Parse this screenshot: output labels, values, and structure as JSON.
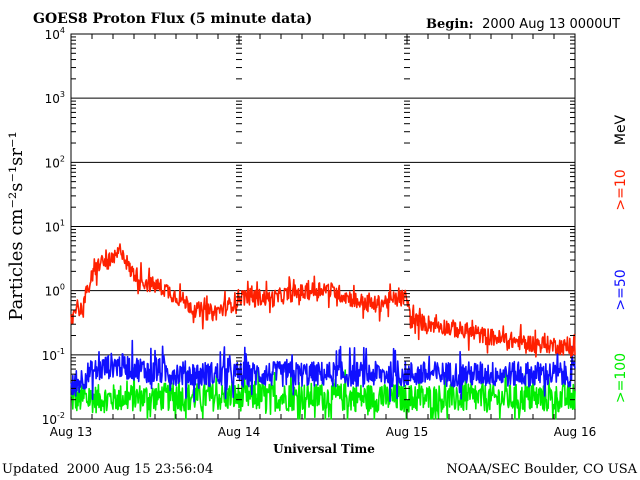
{
  "chart_data": {
    "type": "line",
    "title": "GOES8 Proton Flux (5 minute data)",
    "begin_label": "Begin:",
    "begin_value": "2000 Aug 13 0000UT",
    "xlabel": "Universal Time",
    "ylabel": "Particles cm⁻²s⁻¹sr⁻¹",
    "y_scale": "log",
    "ylim": [
      0.01,
      10000
    ],
    "y_ticks": [
      {
        "value": 0.01,
        "exp": "-2"
      },
      {
        "value": 0.1,
        "exp": "-1"
      },
      {
        "value": 1,
        "exp": "0"
      },
      {
        "value": 10,
        "exp": "1"
      },
      {
        "value": 100,
        "exp": "2"
      },
      {
        "value": 1000,
        "exp": "3"
      },
      {
        "value": 10000,
        "exp": "4"
      }
    ],
    "y_tick_base": "10",
    "x_range_days": [
      0,
      3
    ],
    "x_ticks": [
      {
        "value": 0,
        "label": "Aug 13"
      },
      {
        "value": 1,
        "label": "Aug 14"
      },
      {
        "value": 2,
        "label": "Aug 15"
      },
      {
        "value": 3,
        "label": "Aug 16"
      }
    ],
    "grid": true,
    "series": [
      {
        "name": ">=10 MeV",
        "color": "#ff2000",
        "jitter": 0.12,
        "points": [
          [
            0.0,
            0.35
          ],
          [
            0.03,
            0.6
          ],
          [
            0.06,
            0.5
          ],
          [
            0.12,
            1.5
          ],
          [
            0.17,
            2.7
          ],
          [
            0.25,
            2.9
          ],
          [
            0.3,
            4.5
          ],
          [
            0.35,
            2.1
          ],
          [
            0.45,
            1.3
          ],
          [
            0.55,
            1.1
          ],
          [
            0.65,
            0.75
          ],
          [
            0.75,
            0.5
          ],
          [
            0.85,
            0.45
          ],
          [
            0.95,
            0.6
          ],
          [
            1.0,
            0.8
          ],
          [
            1.1,
            0.8
          ],
          [
            1.2,
            0.75
          ],
          [
            1.3,
            0.9
          ],
          [
            1.4,
            0.95
          ],
          [
            1.5,
            1.1
          ],
          [
            1.6,
            0.9
          ],
          [
            1.7,
            0.7
          ],
          [
            1.8,
            0.6
          ],
          [
            1.9,
            0.7
          ],
          [
            2.0,
            0.8
          ],
          [
            2.02,
            0.35
          ],
          [
            2.15,
            0.3
          ],
          [
            2.3,
            0.25
          ],
          [
            2.45,
            0.2
          ],
          [
            2.6,
            0.17
          ],
          [
            2.75,
            0.15
          ],
          [
            2.9,
            0.14
          ],
          [
            3.0,
            0.12
          ]
        ]
      },
      {
        "name": ">=50 MeV",
        "color": "#1010ff",
        "jitter": 0.18,
        "points": [
          [
            0.0,
            0.03
          ],
          [
            0.1,
            0.05
          ],
          [
            0.25,
            0.07
          ],
          [
            0.5,
            0.055
          ],
          [
            0.75,
            0.05
          ],
          [
            1.0,
            0.05
          ],
          [
            1.25,
            0.05
          ],
          [
            1.5,
            0.05
          ],
          [
            1.75,
            0.05
          ],
          [
            2.0,
            0.05
          ],
          [
            2.5,
            0.05
          ],
          [
            3.0,
            0.05
          ]
        ]
      },
      {
        "name": ">=100 MeV",
        "color": "#00ee00",
        "jitter": 0.2,
        "points": [
          [
            0.0,
            0.02
          ],
          [
            0.5,
            0.022
          ],
          [
            1.0,
            0.022
          ],
          [
            1.5,
            0.022
          ],
          [
            2.0,
            0.021
          ],
          [
            2.5,
            0.021
          ],
          [
            3.0,
            0.021
          ]
        ]
      }
    ],
    "legend": {
      "unit": "MeV",
      "entries": [
        {
          "label": ">=10",
          "color": "#ff2000"
        },
        {
          "label": ">=50",
          "color": "#1010ff"
        },
        {
          "label": ">=100",
          "color": "#00ee00"
        }
      ]
    }
  },
  "footer": {
    "updated_label": "Updated",
    "updated_value": "2000 Aug 15 23:56:04",
    "source": "NOAA/SEC Boulder, CO USA"
  }
}
